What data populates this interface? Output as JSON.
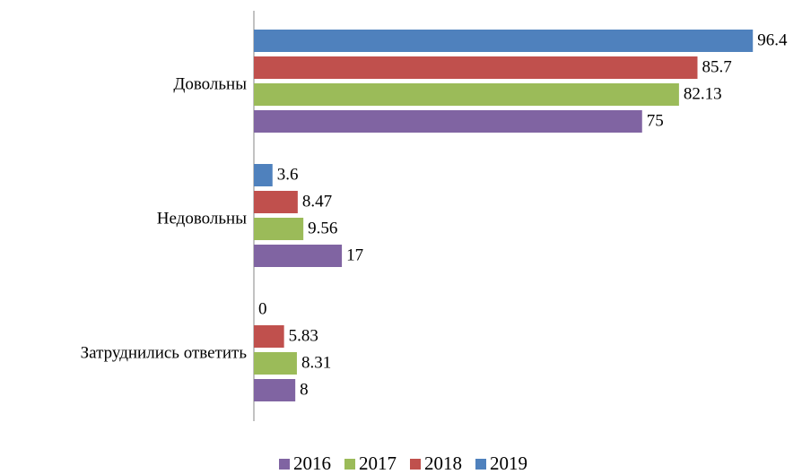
{
  "chart_data": {
    "type": "hbar",
    "categories": [
      "Довольны",
      "Недовольны",
      "Затруднились ответить"
    ],
    "series": [
      {
        "name": "2016",
        "color": "#8064a2",
        "values": [
          75,
          17,
          8
        ]
      },
      {
        "name": "2017",
        "color": "#9bbb59",
        "values": [
          82.13,
          9.56,
          8.31
        ]
      },
      {
        "name": "2018",
        "color": "#c0504d",
        "values": [
          85.7,
          8.47,
          5.83
        ]
      },
      {
        "name": "2019",
        "color": "#4f81bd",
        "values": [
          96.4,
          3.6,
          0
        ]
      }
    ],
    "xlim": [
      0,
      100
    ],
    "legend": "bottom"
  }
}
